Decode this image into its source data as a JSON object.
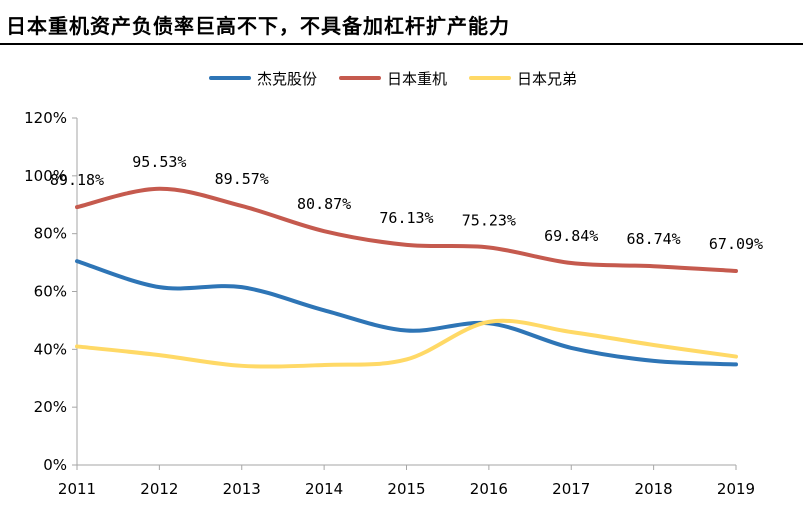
{
  "chart_data": {
    "type": "line",
    "title": "日本重机资产负债率巨高不下，不具备加杠杆扩产能力",
    "x": [
      "2011",
      "2012",
      "2013",
      "2014",
      "2015",
      "2016",
      "2017",
      "2018",
      "2019"
    ],
    "ylim": [
      0,
      120
    ],
    "yticks": [
      "0%",
      "20%",
      "40%",
      "60%",
      "80%",
      "100%",
      "120%"
    ],
    "grid": false,
    "legend_position": "top",
    "series": [
      {
        "name": "杰克股份",
        "color": "#2E75B6",
        "values": [
          70.5,
          61.5,
          61.5,
          53.5,
          46.5,
          49,
          40.5,
          36,
          34.8
        ],
        "data_labels": []
      },
      {
        "name": "日本重机",
        "color": "#C55A4E",
        "values": [
          89.18,
          95.53,
          89.57,
          80.87,
          76.13,
          75.23,
          69.84,
          68.74,
          67.09
        ],
        "data_labels": [
          "89.18%",
          "95.53%",
          "89.57%",
          "80.87%",
          "76.13%",
          "75.23%",
          "69.84%",
          "68.74%",
          "67.09%"
        ]
      },
      {
        "name": "日本兄弟",
        "color": "#FFD966",
        "values": [
          41,
          38,
          34.3,
          34.6,
          36.5,
          49.5,
          46,
          41.5,
          37.5
        ],
        "data_labels": []
      }
    ]
  }
}
